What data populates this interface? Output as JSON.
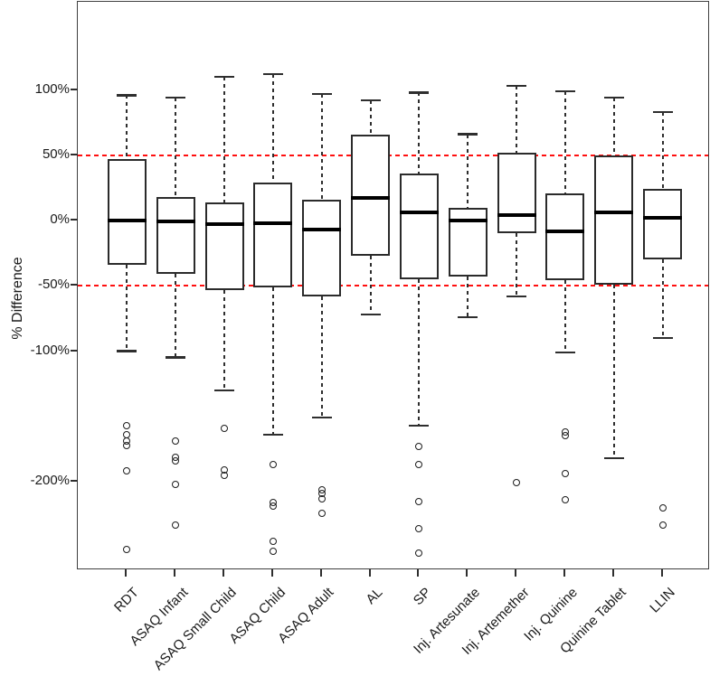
{
  "colors": {
    "reference_line": "#FF0000",
    "box_border": "#2B2B2B",
    "median": "#000000",
    "whisker": "#2E2E2E",
    "frame": "#3F3F3F",
    "background": "#FFFFFF",
    "text": "#1A1A1A"
  },
  "chart_data": {
    "type": "boxplot",
    "title": "",
    "xlabel": "",
    "ylabel": "% Difference",
    "grid": false,
    "legend_position": "none",
    "ylim": [
      -268,
      130
    ],
    "categories": [
      "RDT",
      "ASAQ Infant",
      "ASAQ Small Child",
      "ASAQ Child",
      "ASAQ Adult",
      "AL",
      "SP",
      "Inj. Artesunate",
      "Inj. Artemether",
      "Inj. Quinine",
      "Quinine Tablet",
      "LLIN"
    ],
    "y_ticks": [
      {
        "label": "100%",
        "value": 100
      },
      {
        "label": "50%",
        "value": 50
      },
      {
        "label": "0%",
        "value": 0
      },
      {
        "label": "-50%",
        "value": -50
      },
      {
        "label": "-100%",
        "value": -100
      },
      {
        "label": "-200%",
        "value": -200
      }
    ],
    "reference_lines": [
      {
        "value": 50,
        "color": "#FF0000",
        "style": "dashed"
      },
      {
        "value": -50,
        "color": "#FF0000",
        "style": "dashed"
      }
    ],
    "boxes": [
      {
        "label": "RDT",
        "whisker_low": -100,
        "q1": -34,
        "median": 0,
        "q3": 47,
        "whisker_high": 96,
        "outliers": [
          -157,
          -164,
          -169,
          -172,
          -192,
          -252
        ]
      },
      {
        "label": "ASAQ Infant",
        "whisker_low": -105,
        "q1": -41,
        "median": -1,
        "q3": 18,
        "whisker_high": 94,
        "outliers": [
          -169,
          -181,
          -184,
          -202,
          -233
        ]
      },
      {
        "label": "ASAQ Small Child",
        "whisker_low": -130,
        "q1": -53,
        "median": -3,
        "q3": 14,
        "whisker_high": 110,
        "outliers": [
          -159,
          -191,
          -195
        ]
      },
      {
        "label": "ASAQ Child",
        "whisker_low": -164,
        "q1": -51,
        "median": -2,
        "q3": 29,
        "whisker_high": 112,
        "outliers": [
          -187,
          -216,
          -219,
          -246,
          -253
        ]
      },
      {
        "label": "ASAQ Adult",
        "whisker_low": -151,
        "q1": -58,
        "median": -7,
        "q3": 16,
        "whisker_high": 97,
        "outliers": [
          -206,
          -209,
          -213,
          -224
        ]
      },
      {
        "label": "AL",
        "whisker_low": -72,
        "q1": -27,
        "median": 17,
        "q3": 66,
        "whisker_high": 92,
        "outliers": []
      },
      {
        "label": "SP",
        "whisker_low": -157,
        "q1": -45,
        "median": 6,
        "q3": 36,
        "whisker_high": 98,
        "outliers": [
          -173,
          -187,
          -215,
          -236,
          -255
        ]
      },
      {
        "label": "Inj. Artesunate",
        "whisker_low": -74,
        "q1": -43,
        "median": 0,
        "q3": 10,
        "whisker_high": 66,
        "outliers": []
      },
      {
        "label": "Inj. Artemether",
        "whisker_low": -58,
        "q1": -10,
        "median": 4,
        "q3": 52,
        "whisker_high": 103,
        "outliers": [
          -201
        ]
      },
      {
        "label": "Inj. Quinine",
        "whisker_low": -101,
        "q1": -46,
        "median": -8,
        "q3": 21,
        "whisker_high": 99,
        "outliers": [
          -162,
          -165,
          -194,
          -214
        ]
      },
      {
        "label": "Quinine Tablet",
        "whisker_low": -182,
        "q1": -49,
        "median": 6,
        "q3": 50,
        "whisker_high": 94,
        "outliers": []
      },
      {
        "label": "LLIN",
        "whisker_low": -90,
        "q1": -30,
        "median": 2,
        "q3": 24,
        "whisker_high": 83,
        "outliers": [
          -220,
          -233
        ]
      }
    ]
  }
}
